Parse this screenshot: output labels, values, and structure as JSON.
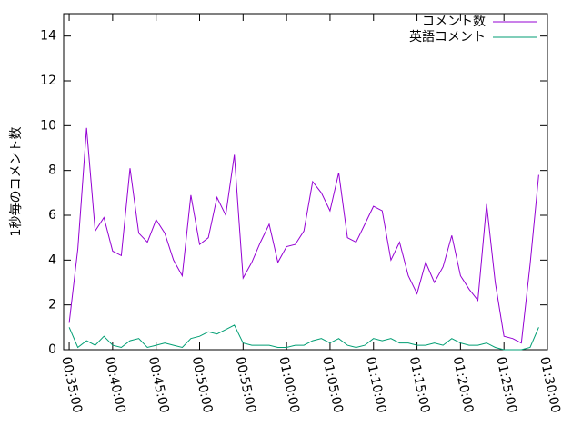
{
  "chart_data": {
    "type": "line",
    "ylabel": "1秒毎のコメント数",
    "x": [
      2100,
      2160,
      2220,
      2280,
      2340,
      2400,
      2460,
      2520,
      2580,
      2640,
      2700,
      2760,
      2820,
      2880,
      2940,
      3000,
      3060,
      3120,
      3180,
      3240,
      3300,
      3360,
      3420,
      3480,
      3540,
      3600,
      3660,
      3720,
      3780,
      3840,
      3900,
      3960,
      4020,
      4080,
      4140,
      4200,
      4260,
      4320,
      4380,
      4440,
      4500,
      4560,
      4620,
      4680,
      4740,
      4800,
      4860,
      4920,
      4980,
      5040,
      5100,
      5160,
      5220,
      5280,
      5340
    ],
    "series": [
      {
        "name": "コメント数",
        "color": "#9400d3",
        "values": [
          1.2,
          4.5,
          9.9,
          5.3,
          5.9,
          4.4,
          4.2,
          8.1,
          5.2,
          4.8,
          5.8,
          5.2,
          4.0,
          3.3,
          6.9,
          4.7,
          5.0,
          6.8,
          6.0,
          8.7,
          3.2,
          3.9,
          4.8,
          5.6,
          3.9,
          4.6,
          4.7,
          5.3,
          7.5,
          7.0,
          6.2,
          7.9,
          5.0,
          4.8,
          5.6,
          6.4,
          6.2,
          4.0,
          4.8,
          3.3,
          2.5,
          3.9,
          3.0,
          3.7,
          5.1,
          3.3,
          2.7,
          2.2,
          6.5,
          3.0,
          0.6,
          0.5,
          0.3,
          3.8,
          7.8
        ]
      },
      {
        "name": "英語コメント",
        "color": "#009e73",
        "values": [
          1.0,
          0.1,
          0.4,
          0.2,
          0.6,
          0.2,
          0.1,
          0.4,
          0.5,
          0.1,
          0.2,
          0.3,
          0.2,
          0.1,
          0.5,
          0.6,
          0.8,
          0.7,
          0.9,
          1.1,
          0.3,
          0.2,
          0.2,
          0.2,
          0.1,
          0.1,
          0.2,
          0.2,
          0.4,
          0.5,
          0.3,
          0.5,
          0.2,
          0.1,
          0.2,
          0.5,
          0.4,
          0.5,
          0.3,
          0.3,
          0.2,
          0.2,
          0.3,
          0.2,
          0.5,
          0.3,
          0.2,
          0.2,
          0.3,
          0.1,
          0.0,
          0.0,
          0.0,
          0.1,
          1.0
        ]
      }
    ],
    "xlim": [
      2062,
      5400
    ],
    "ylim": [
      0,
      15
    ],
    "yticks": [
      0,
      2,
      4,
      6,
      8,
      10,
      12,
      14
    ],
    "xticks": [
      {
        "value": 2100,
        "label": "00:35:00"
      },
      {
        "value": 2400,
        "label": "00:40:00"
      },
      {
        "value": 2700,
        "label": "00:45:00"
      },
      {
        "value": 3000,
        "label": "00:50:00"
      },
      {
        "value": 3300,
        "label": "00:55:00"
      },
      {
        "value": 3600,
        "label": "01:00:00"
      },
      {
        "value": 3900,
        "label": "01:05:00"
      },
      {
        "value": 4200,
        "label": "01:10:00"
      },
      {
        "value": 4500,
        "label": "01:15:00"
      },
      {
        "value": 4800,
        "label": "01:20:00"
      },
      {
        "value": 5100,
        "label": "01:25:00"
      },
      {
        "value": 5400,
        "label": "01:30:00"
      }
    ],
    "legend": "upper right",
    "grid": false
  }
}
